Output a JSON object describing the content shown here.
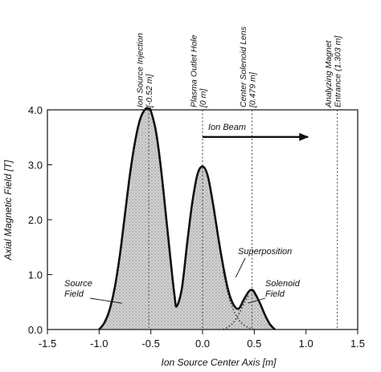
{
  "chart_data": {
    "type": "area",
    "title": "",
    "xlabel": "Ion Source Center Axis [m]",
    "ylabel": "Axial Magnetic Field [T]",
    "xlim": [
      -1.5,
      1.5
    ],
    "ylim": [
      0.0,
      4.0
    ],
    "xticks": [
      -1.5,
      -1.0,
      -0.5,
      0.0,
      0.5,
      1.0,
      1.5
    ],
    "xtick_labels": [
      "-1.5",
      "-1.0",
      "-0.5",
      "0.0",
      "0.5",
      "1.0",
      "1.5"
    ],
    "yticks": [
      0.0,
      1.0,
      2.0,
      3.0,
      4.0
    ],
    "ytick_labels": [
      "0.0",
      "1.0",
      "2.0",
      "3.0",
      "4.0"
    ],
    "grid": false,
    "series": [
      {
        "name": "Superposition",
        "style": "solid-thick",
        "x": [
          -1.0,
          -0.95,
          -0.9,
          -0.85,
          -0.8,
          -0.75,
          -0.7,
          -0.65,
          -0.6,
          -0.55,
          -0.52,
          -0.5,
          -0.45,
          -0.4,
          -0.35,
          -0.3,
          -0.27,
          -0.25,
          -0.2,
          -0.15,
          -0.1,
          -0.05,
          0.0,
          0.05,
          0.1,
          0.15,
          0.2,
          0.25,
          0.3,
          0.35,
          0.4,
          0.45,
          0.48,
          0.5,
          0.55,
          0.6,
          0.65,
          0.7
        ],
        "y": [
          0.0,
          0.12,
          0.35,
          0.75,
          1.35,
          2.1,
          2.85,
          3.45,
          3.85,
          4.02,
          4.02,
          3.98,
          3.6,
          2.9,
          2.0,
          1.1,
          0.6,
          0.42,
          0.75,
          1.55,
          2.3,
          2.82,
          2.97,
          2.8,
          2.3,
          1.7,
          1.15,
          0.7,
          0.45,
          0.38,
          0.55,
          0.7,
          0.72,
          0.68,
          0.5,
          0.28,
          0.1,
          0.0
        ]
      },
      {
        "name": "Source Field",
        "style": "dotted",
        "x": [
          0.2,
          0.25,
          0.3,
          0.35,
          0.4,
          0.45,
          0.5
        ],
        "y": [
          1.05,
          0.62,
          0.35,
          0.18,
          0.08,
          0.03,
          0.0
        ]
      },
      {
        "name": "Solenoid Field",
        "style": "dotted",
        "x": [
          0.2,
          0.25,
          0.3,
          0.35,
          0.4,
          0.45
        ],
        "y": [
          0.0,
          0.05,
          0.13,
          0.28,
          0.47,
          0.64
        ]
      }
    ],
    "vertical_markers": [
      {
        "x": -0.52,
        "label": "Ion Source Injection\n[-0.52 m]"
      },
      {
        "x": 0.0,
        "label": "Plasma Outlet Hole\n[0 m]"
      },
      {
        "x": 0.479,
        "label": "Center Solenoid Lens\n[0.479 m]"
      },
      {
        "x": 1.303,
        "label": "Analyzing Magnet\nEntrance (1.303 m]"
      }
    ],
    "annotations": [
      {
        "text": "Ion Beam",
        "kind": "arrow",
        "x_from": 0.0,
        "x_to": 1.02,
        "y": 3.55
      },
      {
        "text": "Superposition",
        "points_to": [
          0.32,
          0.95
        ]
      },
      {
        "text": "Source\nField",
        "points_to": [
          -0.78,
          0.48
        ]
      },
      {
        "text": "Solenoid\nField",
        "points_to": [
          0.44,
          0.48
        ]
      }
    ]
  }
}
